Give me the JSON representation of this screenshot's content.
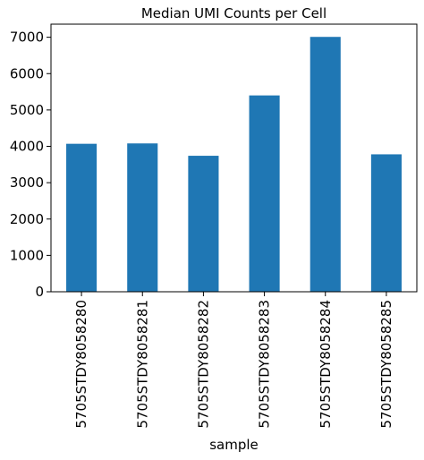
{
  "chart_data": {
    "type": "bar",
    "title": "Median UMI Counts per Cell",
    "xlabel": "sample",
    "ylabel": "",
    "categories": [
      "5705STDY8058280",
      "5705STDY8058281",
      "5705STDY8058282",
      "5705STDY8058283",
      "5705STDY8058284",
      "5705STDY8058285"
    ],
    "values": [
      4070,
      4080,
      3740,
      5400,
      7010,
      3780
    ],
    "ylim": [
      0,
      7360
    ],
    "yticks": [
      0,
      1000,
      2000,
      3000,
      4000,
      5000,
      6000,
      7000
    ],
    "grid": false,
    "legend": "none",
    "bar_color": "#1f77b4",
    "axis_color": "#000000"
  }
}
